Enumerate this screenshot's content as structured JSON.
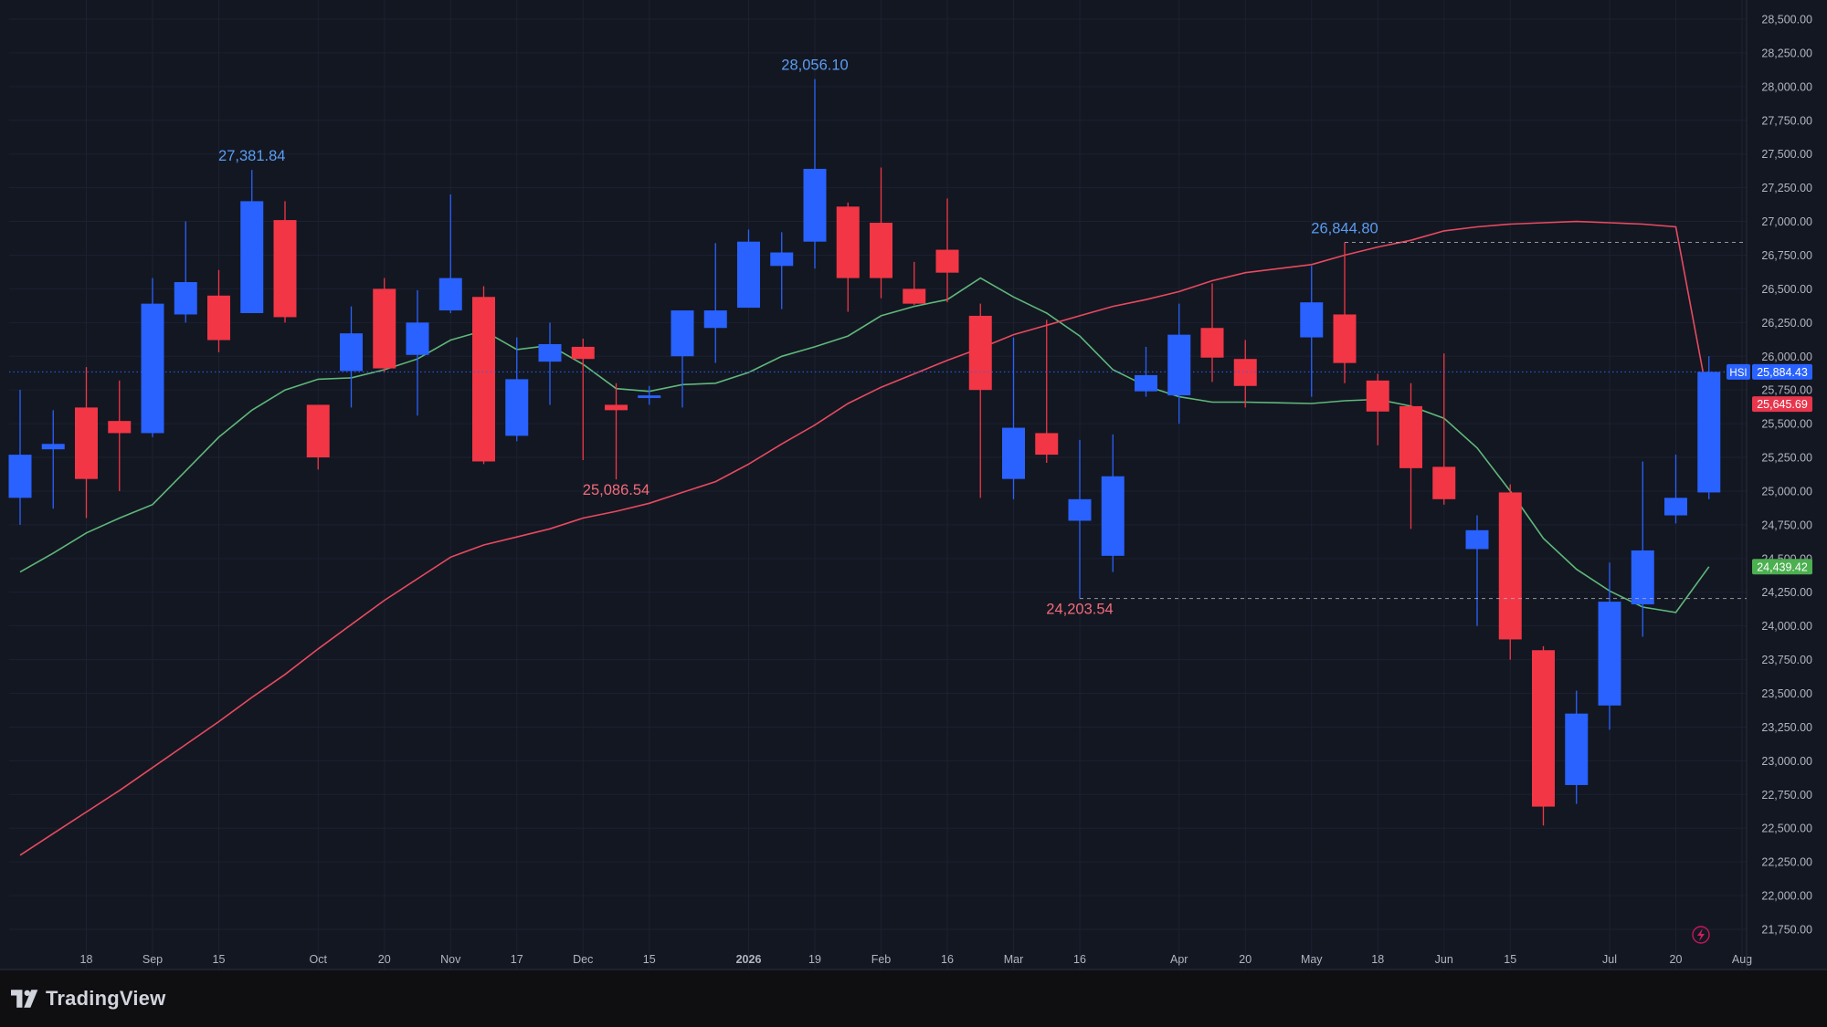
{
  "chart_data": {
    "type": "candlestick",
    "symbol": "HSI",
    "y_axis": {
      "range": [
        21650,
        28600
      ],
      "ticks": [
        21750,
        22000,
        22250,
        22500,
        22750,
        23000,
        23250,
        23500,
        23750,
        24000,
        24250,
        24500,
        24750,
        25000,
        25250,
        25500,
        25750,
        26000,
        26250,
        26500,
        26750,
        27000,
        27250,
        27500,
        27750,
        28000,
        28250,
        28500
      ],
      "tick_labels": [
        "21,750.00",
        "22,000.00",
        "22,250.00",
        "22,500.00",
        "22,750.00",
        "23,000.00",
        "23,250.00",
        "23,500.00",
        "23,750.00",
        "24,000.00",
        "24,250.00",
        "24,500.00",
        "24,750.00",
        "25,000.00",
        "25,250.00",
        "25,500.00",
        "25,750.00",
        "26,000.00",
        "26,250.00",
        "26,500.00",
        "26,750.00",
        "27,000.00",
        "27,250.00",
        "27,500.00",
        "27,750.00",
        "28,000.00",
        "28,250.00",
        "28,500.00"
      ]
    },
    "x_axis": {
      "ticks": [
        {
          "label": "18",
          "date": "2025-08-18"
        },
        {
          "label": "Sep",
          "date": "2025-09-01"
        },
        {
          "label": "15",
          "date": "2025-09-15"
        },
        {
          "label": "Oct",
          "date": "2025-10-06"
        },
        {
          "label": "20",
          "date": "2025-10-20"
        },
        {
          "label": "Nov",
          "date": "2025-11-03"
        },
        {
          "label": "17",
          "date": "2025-11-17"
        },
        {
          "label": "Dec",
          "date": "2025-12-01"
        },
        {
          "label": "15",
          "date": "2025-12-15"
        },
        {
          "label": "2026",
          "date": "2026-01-05"
        },
        {
          "label": "19",
          "date": "2026-01-19"
        },
        {
          "label": "Feb",
          "date": "2026-02-02"
        },
        {
          "label": "16",
          "date": "2026-02-16"
        },
        {
          "label": "Mar",
          "date": "2026-03-02"
        },
        {
          "label": "16",
          "date": "2026-03-16"
        },
        {
          "label": "Apr",
          "date": "2026-04-06"
        },
        {
          "label": "20",
          "date": "2026-04-20"
        },
        {
          "label": "May",
          "date": "2026-05-04"
        },
        {
          "label": "18",
          "date": "2026-05-18"
        },
        {
          "label": "Jun",
          "date": "2026-06-01"
        },
        {
          "label": "15",
          "date": "2026-06-15"
        },
        {
          "label": "Jul",
          "date": "2026-07-06"
        },
        {
          "label": "20",
          "date": "2026-07-20"
        },
        {
          "label": "Aug",
          "date": "2026-08-03"
        }
      ]
    },
    "candles": [
      {
        "date": "2025-08-04",
        "open": 24950,
        "high": 25750,
        "low": 24750,
        "close": 25270
      },
      {
        "date": "2025-08-11",
        "open": 25310,
        "high": 25600,
        "low": 24870,
        "close": 25350
      },
      {
        "date": "2025-08-18",
        "open": 25620,
        "high": 25920,
        "low": 24800,
        "close": 25090
      },
      {
        "date": "2025-08-25",
        "open": 25520,
        "high": 25820,
        "low": 25000,
        "close": 25430
      },
      {
        "date": "2025-09-01",
        "open": 25430,
        "high": 26580,
        "low": 25400,
        "close": 26390
      },
      {
        "date": "2025-09-08",
        "open": 26310,
        "high": 27000,
        "low": 26250,
        "close": 26550
      },
      {
        "date": "2025-09-15",
        "open": 26450,
        "high": 26640,
        "low": 26030,
        "close": 26120
      },
      {
        "date": "2025-09-22",
        "open": 26320,
        "high": 27381.84,
        "low": 26320,
        "close": 27150
      },
      {
        "date": "2025-09-29",
        "open": 27010,
        "high": 27150,
        "low": 26250,
        "close": 26290
      },
      {
        "date": "2025-10-06",
        "open": 25640,
        "high": 25640,
        "low": 25160,
        "close": 25250
      },
      {
        "date": "2025-10-13",
        "open": 25890,
        "high": 26370,
        "low": 25620,
        "close": 26170
      },
      {
        "date": "2025-10-20",
        "open": 26500,
        "high": 26580,
        "low": 25880,
        "close": 25910
      },
      {
        "date": "2025-10-27",
        "open": 26010,
        "high": 26490,
        "low": 25560,
        "close": 26250
      },
      {
        "date": "2025-11-03",
        "open": 26340,
        "high": 27200,
        "low": 26320,
        "close": 26580
      },
      {
        "date": "2025-11-10",
        "open": 26440,
        "high": 26520,
        "low": 25200,
        "close": 25220
      },
      {
        "date": "2025-11-17",
        "open": 25410,
        "high": 26140,
        "low": 25370,
        "close": 25830
      },
      {
        "date": "2025-11-24",
        "open": 25960,
        "high": 26250,
        "low": 25640,
        "close": 26090
      },
      {
        "date": "2025-12-01",
        "open": 26070,
        "high": 26130,
        "low": 25230,
        "close": 25980
      },
      {
        "date": "2025-12-08",
        "open": 25640,
        "high": 25800,
        "low": 25086.54,
        "close": 25600
      },
      {
        "date": "2025-12-15",
        "open": 25690,
        "high": 25780,
        "low": 25640,
        "close": 25710
      },
      {
        "date": "2025-12-22",
        "open": 26000,
        "high": 26340,
        "low": 25620,
        "close": 26340
      },
      {
        "date": "2025-12-29",
        "open": 26210,
        "high": 26840,
        "low": 25950,
        "close": 26340
      },
      {
        "date": "2026-01-05",
        "open": 26360,
        "high": 26940,
        "low": 26370,
        "close": 26850
      },
      {
        "date": "2026-01-12",
        "open": 26670,
        "high": 26920,
        "low": 26350,
        "close": 26770
      },
      {
        "date": "2026-01-19",
        "open": 26850,
        "high": 28056.1,
        "low": 26650,
        "close": 27390
      },
      {
        "date": "2026-01-26",
        "open": 27110,
        "high": 27140,
        "low": 26330,
        "close": 26580
      },
      {
        "date": "2026-02-02",
        "open": 26990,
        "high": 27400,
        "low": 26430,
        "close": 26580
      },
      {
        "date": "2026-02-09",
        "open": 26500,
        "high": 26700,
        "low": 26380,
        "close": 26390
      },
      {
        "date": "2026-02-16",
        "open": 26790,
        "high": 27170,
        "low": 26400,
        "close": 26620
      },
      {
        "date": "2026-02-23",
        "open": 26300,
        "high": 26390,
        "low": 24950,
        "close": 25750
      },
      {
        "date": "2026-03-02",
        "open": 25090,
        "high": 26140,
        "low": 24940,
        "close": 25470
      },
      {
        "date": "2026-03-09",
        "open": 25430,
        "high": 26270,
        "low": 25210,
        "close": 25270
      },
      {
        "date": "2026-03-16",
        "open": 24780,
        "high": 25380,
        "low": 24203.54,
        "close": 24940
      },
      {
        "date": "2026-03-23",
        "open": 24520,
        "high": 25420,
        "low": 24400,
        "close": 25110
      },
      {
        "date": "2026-03-30",
        "open": 25740,
        "high": 26070,
        "low": 25700,
        "close": 25860
      },
      {
        "date": "2026-04-06",
        "open": 25710,
        "high": 26390,
        "low": 25500,
        "close": 26160
      },
      {
        "date": "2026-04-13",
        "open": 26210,
        "high": 26540,
        "low": 25810,
        "close": 25990
      },
      {
        "date": "2026-04-20",
        "open": 25980,
        "high": 26120,
        "low": 25620,
        "close": 25780
      },
      {
        "date": "2026-05-04",
        "open": 26140,
        "high": 26670,
        "low": 25700,
        "close": 26400
      },
      {
        "date": "2026-05-11",
        "open": 26310,
        "high": 26844.8,
        "low": 25800,
        "close": 25950
      },
      {
        "date": "2026-05-18",
        "open": 25820,
        "high": 25870,
        "low": 25340,
        "close": 25590
      },
      {
        "date": "2026-05-25",
        "open": 25630,
        "high": 25800,
        "low": 24720,
        "close": 25170
      },
      {
        "date": "2026-06-01",
        "open": 25180,
        "high": 26020,
        "low": 24900,
        "close": 24940
      },
      {
        "date": "2026-06-08",
        "open": 24570,
        "high": 24820,
        "low": 24000,
        "close": 24710
      },
      {
        "date": "2026-06-15",
        "open": 24990,
        "high": 25050,
        "low": 23750,
        "close": 23900
      },
      {
        "date": "2026-06-22",
        "open": 23820,
        "high": 23850,
        "low": 22520,
        "close": 22660
      },
      {
        "date": "2026-06-29",
        "open": 22820,
        "high": 23520,
        "low": 22680,
        "close": 23350
      },
      {
        "date": "2026-07-06",
        "open": 23410,
        "high": 24470,
        "low": 23230,
        "close": 24180
      },
      {
        "date": "2026-07-13",
        "open": 24160,
        "high": 25220,
        "low": 23920,
        "close": 24560
      },
      {
        "date": "2026-07-20",
        "open": 24820,
        "high": 25270,
        "low": 24760,
        "close": 24950
      },
      {
        "date": "2026-07-27",
        "open": 24990,
        "high": 26000,
        "low": 24940,
        "close": 25884.43
      }
    ],
    "moving_averages": [
      {
        "color": "#5fb87a",
        "last_value": 24439.42,
        "values": [
          24400,
          24540,
          24690,
          24800,
          24900,
          25150,
          25400,
          25600,
          25750,
          25830,
          25840,
          25900,
          25980,
          26120,
          26190,
          26050,
          26080,
          25940,
          25760,
          25740,
          25790,
          25800,
          25880,
          26000,
          26070,
          26150,
          26300,
          26370,
          26420,
          26580,
          26440,
          26320,
          26150,
          25900,
          25780,
          25700,
          25660,
          25660,
          25650,
          25670,
          25680,
          25630,
          25540,
          25320,
          25000,
          24650,
          24420,
          24260,
          24140,
          24100,
          24439.42
        ]
      },
      {
        "color": "#e84a5f",
        "last_value": 25645.69,
        "values": [
          22300,
          22460,
          22620,
          22780,
          22950,
          23120,
          23290,
          23470,
          23640,
          23830,
          24010,
          24190,
          24350,
          24510,
          24600,
          24660,
          24720,
          24800,
          24850,
          24910,
          24990,
          25070,
          25200,
          25350,
          25490,
          25650,
          25770,
          25870,
          25970,
          26060,
          26160,
          26230,
          26300,
          26370,
          26420,
          26480,
          26560,
          26620,
          26680,
          26750,
          26810,
          26860,
          26930,
          26960,
          26980,
          26990,
          27000,
          26990,
          26980,
          26960,
          25645.69
        ]
      }
    ],
    "annotations": [
      {
        "text": "27,381.84",
        "date": "2025-09-22",
        "value": 27381.84,
        "kind": "high",
        "color": "#5b9cf2"
      },
      {
        "text": "28,056.10",
        "date": "2026-01-19",
        "value": 28056.1,
        "kind": "high",
        "color": "#5b9cf2"
      },
      {
        "text": "26,844.80",
        "date": "2026-05-11",
        "value": 26844.8,
        "kind": "high",
        "color": "#5b9cf2"
      },
      {
        "text": "25,086.54",
        "date": "2025-12-08",
        "value": 25086.54,
        "kind": "low",
        "color": "#f26b7a"
      },
      {
        "text": "24,203.54",
        "date": "2026-03-16",
        "value": 24203.54,
        "kind": "low",
        "color": "#f26b7a"
      }
    ],
    "price_labels": [
      {
        "text": "25,884.43",
        "value": 25884.43,
        "color": "#2962ff"
      },
      {
        "text": "25,645.69",
        "value": 25645.69,
        "color": "#e8364c"
      },
      {
        "text": "24,439.42",
        "value": 24439.42,
        "color": "#4caf50"
      }
    ],
    "symbol_badge": "HSI",
    "up_color": "#2962ff",
    "down_color": "#f23645",
    "grid": true
  },
  "watermark": "TradingView",
  "icons": [
    "tradingview-logo-icon",
    "lightning-icon"
  ]
}
